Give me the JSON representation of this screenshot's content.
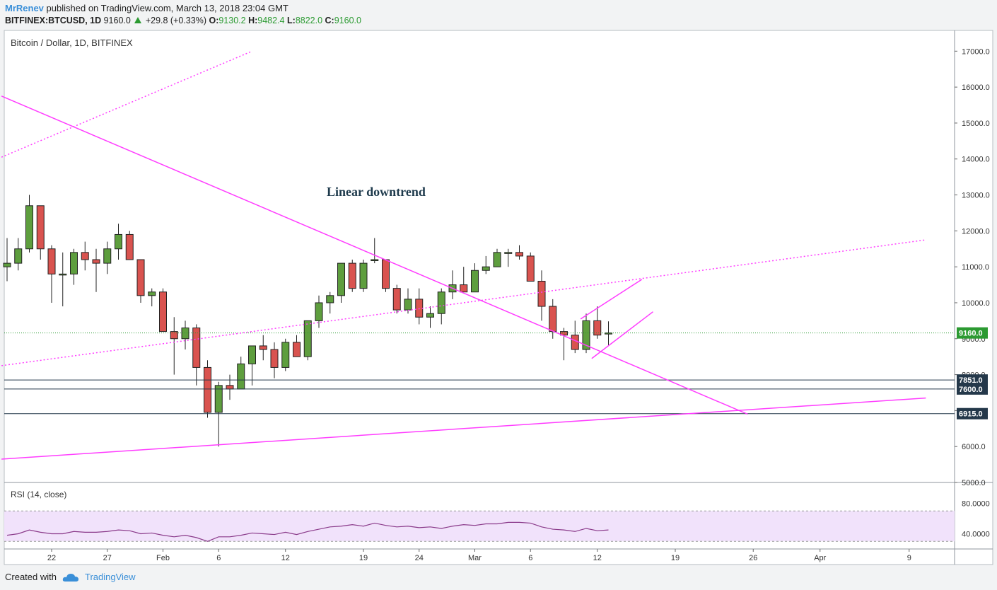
{
  "header": {
    "author": "MrRenev",
    "published": "published on TradingView.com, March 13, 2018 23:04 GMT",
    "symbol": "BITFINEX:BTCUSD, 1D",
    "last": "9160.0",
    "change": "+29.8 (+0.33%)",
    "o_label": "O:",
    "o": "9130.2",
    "h_label": "H:",
    "h": "9482.4",
    "l_label": "L:",
    "l": "8822.0",
    "c_label": "C:",
    "c": "9160.0"
  },
  "chart_title": "Bitcoin / Dollar, 1D, BITFINEX",
  "annotation": "Linear downtrend",
  "rsi_label": "RSI (14, close)",
  "footer": {
    "created": "Created with",
    "brand": "TradingView"
  },
  "colors": {
    "up": "#5e9e3e",
    "down": "#d9534f",
    "trend": "#ff3dff",
    "rsi": "#8a3a8a",
    "rsi_band": "#f1e2fb",
    "last_price": "#2b9a31",
    "level": "#24384a"
  },
  "chart_data": {
    "type": "candlestick",
    "ylim": [
      5000,
      17400
    ],
    "yticks": [
      5000,
      6000,
      7000,
      8000,
      9000,
      10000,
      11000,
      12000,
      13000,
      14000,
      15000,
      16000,
      17000
    ],
    "ytick_labels": [
      "5000.0",
      "6000.0",
      "7000.0",
      "8000.0",
      "9000.0",
      "10000.0",
      "11000.0",
      "12000.0",
      "13000.0",
      "14000.0",
      "15000.0",
      "16000.0",
      "17000.0"
    ],
    "x_labels": [
      {
        "i": 4,
        "t": "22"
      },
      {
        "i": 9,
        "t": "27"
      },
      {
        "i": 14,
        "t": "Feb"
      },
      {
        "i": 19,
        "t": "6"
      },
      {
        "i": 25,
        "t": "12"
      },
      {
        "i": 32,
        "t": "19"
      },
      {
        "i": 37,
        "t": "24"
      },
      {
        "i": 42,
        "t": "Mar"
      },
      {
        "i": 47,
        "t": "6"
      },
      {
        "i": 53,
        "t": "12"
      },
      {
        "i": 60,
        "t": "19"
      },
      {
        "i": 67,
        "t": "26"
      },
      {
        "i": 73,
        "t": "Apr"
      },
      {
        "i": 81,
        "t": "9"
      }
    ],
    "candles": [
      [
        11000,
        11800,
        10600,
        11100
      ],
      [
        11100,
        11800,
        10900,
        11500
      ],
      [
        11500,
        13000,
        11400,
        12700
      ],
      [
        12700,
        12700,
        11200,
        11500
      ],
      [
        11500,
        11600,
        10000,
        10800
      ],
      [
        10800,
        11400,
        9900,
        10800
      ],
      [
        10800,
        11500,
        10500,
        11400
      ],
      [
        11400,
        11700,
        10900,
        11200
      ],
      [
        11200,
        11500,
        10300,
        11100
      ],
      [
        11100,
        11700,
        10800,
        11500
      ],
      [
        11500,
        12200,
        11200,
        11900
      ],
      [
        11900,
        12000,
        11200,
        11200
      ],
      [
        11200,
        11200,
        10000,
        10200
      ],
      [
        10200,
        10400,
        9900,
        10300
      ],
      [
        10300,
        10400,
        9200,
        9200
      ],
      [
        9200,
        9600,
        8000,
        9000
      ],
      [
        9000,
        9500,
        8700,
        9300
      ],
      [
        9300,
        9400,
        7700,
        8200
      ],
      [
        8200,
        8400,
        6800,
        6950
      ],
      [
        6950,
        7800,
        6000,
        7700
      ],
      [
        7700,
        8000,
        7300,
        7600
      ],
      [
        7600,
        8500,
        7600,
        8300
      ],
      [
        8300,
        8800,
        7700,
        8800
      ],
      [
        8800,
        9100,
        8400,
        8700
      ],
      [
        8700,
        8900,
        7900,
        8200
      ],
      [
        8200,
        9000,
        8100,
        8900
      ],
      [
        8900,
        9100,
        8500,
        8500
      ],
      [
        8500,
        9500,
        8400,
        9500
      ],
      [
        9500,
        10200,
        9300,
        10000
      ],
      [
        10000,
        10300,
        9700,
        10200
      ],
      [
        10200,
        11100,
        10000,
        11100
      ],
      [
        11100,
        11200,
        10300,
        10400
      ],
      [
        10400,
        11200,
        10300,
        11100
      ],
      [
        11200,
        11800,
        11100,
        11200
      ],
      [
        11200,
        11200,
        10300,
        10400
      ],
      [
        10400,
        10500,
        9700,
        9800
      ],
      [
        9800,
        10400,
        9700,
        10100
      ],
      [
        10100,
        10400,
        9400,
        9600
      ],
      [
        9600,
        9900,
        9300,
        9700
      ],
      [
        9700,
        10400,
        9400,
        10300
      ],
      [
        10300,
        10900,
        10100,
        10500
      ],
      [
        10500,
        11000,
        10300,
        10300
      ],
      [
        10300,
        11100,
        10300,
        10900
      ],
      [
        10900,
        11300,
        10800,
        11000
      ],
      [
        11000,
        11500,
        11000,
        11400
      ],
      [
        11400,
        11500,
        11000,
        11400
      ],
      [
        11400,
        11600,
        11200,
        11300
      ],
      [
        11300,
        11400,
        10600,
        10600
      ],
      [
        10600,
        10900,
        9500,
        9900
      ],
      [
        9900,
        10100,
        9000,
        9200
      ],
      [
        9200,
        9300,
        8400,
        9100
      ],
      [
        9100,
        9500,
        8600,
        8700
      ],
      [
        8700,
        9700,
        8600,
        9500
      ],
      [
        9500,
        9900,
        9000,
        9100
      ],
      [
        9130.2,
        9482.4,
        8822,
        9160
      ]
    ],
    "horizontal_levels": [
      7851.0,
      7600.0,
      6915.0
    ],
    "level_labels": [
      "7851.0",
      "7600.0",
      "6915.0"
    ],
    "last_price": 9160.0,
    "last_price_label": "9160.0",
    "trendlines": [
      {
        "style": "solid",
        "from": [
          -0.5,
          15750
        ],
        "to": [
          66.5,
          6900
        ]
      },
      {
        "style": "solid",
        "from": [
          -0.5,
          5650
        ],
        "to": [
          82.5,
          7350
        ]
      },
      {
        "style": "dotted",
        "from": [
          -0.5,
          14050
        ],
        "to": [
          22,
          17000
        ]
      },
      {
        "style": "dotted",
        "from": [
          -0.5,
          8250
        ],
        "to": [
          82.5,
          11750
        ]
      },
      {
        "style": "solid",
        "from": [
          51.5,
          9550
        ],
        "to": [
          57,
          10650
        ]
      },
      {
        "style": "solid",
        "from": [
          52.5,
          8450
        ],
        "to": [
          58,
          9750
        ]
      }
    ],
    "rsi": {
      "ylim": [
        20,
        100
      ],
      "yticks": [
        40,
        80
      ],
      "ytick_labels": [
        "40.0000",
        "80.0000"
      ],
      "band": [
        30,
        70
      ],
      "values": [
        38,
        40,
        45,
        42,
        40,
        40,
        43,
        42,
        42,
        43,
        45,
        44,
        40,
        41,
        38,
        36,
        38,
        35,
        30,
        36,
        36,
        38,
        41,
        40,
        39,
        42,
        39,
        43,
        46,
        49,
        50,
        52,
        50,
        54,
        51,
        49,
        50,
        48,
        49,
        47,
        50,
        52,
        51,
        53,
        53,
        55,
        55,
        54,
        49,
        46,
        45,
        43,
        47,
        44,
        45
      ]
    }
  }
}
